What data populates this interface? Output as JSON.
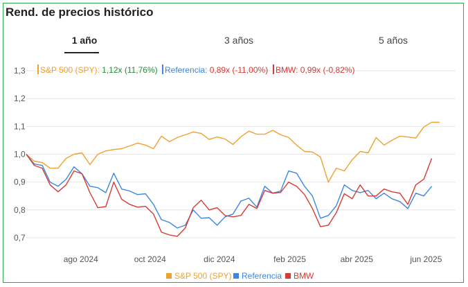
{
  "title": "Rend. de precios histórico",
  "tabs": [
    {
      "label": "1 año",
      "active": true
    },
    {
      "label": "3 años",
      "active": false
    },
    {
      "label": "5 años",
      "active": false
    }
  ],
  "colors": {
    "sp500": "#f0a030",
    "referencia": "#3a86e0",
    "bmw": "#d63a32",
    "green": "#2b8a3e",
    "red": "#d63a32",
    "grid": "#e6e6e6",
    "axis_text": "#555555"
  },
  "header_items": [
    {
      "name": "S&P 500 (SPY)",
      "value": "1,12x",
      "change": "(11,76%)",
      "positive": true
    },
    {
      "name": "Referencia",
      "value": "0,89x",
      "change": "(-11,00%)",
      "positive": false
    },
    {
      "name": "BMW",
      "value": "0,99x",
      "change": "(-0,82%)",
      "positive": false
    }
  ],
  "chart_data": {
    "type": "line",
    "y_ticks": [
      "0,7",
      "0,8",
      "0,9",
      "1,0",
      "1,1",
      "1,2",
      "1,3"
    ],
    "y_tick_values": [
      0.7,
      0.8,
      0.9,
      1.0,
      1.1,
      1.2,
      1.3
    ],
    "ylim": [
      0.67,
      1.33
    ],
    "x_tick_labels": [
      "ago 2024",
      "oct 2024",
      "dic 2024",
      "feb 2025",
      "abr 2025",
      "jun 2025"
    ],
    "x_tick_dates": [
      "2024-08-01",
      "2024-10-01",
      "2024-12-01",
      "2025-02-01",
      "2025-04-01",
      "2025-06-01"
    ],
    "x_range": [
      "2024-06-14",
      "2025-06-27"
    ],
    "legend": [
      "S&P 500 (SPY)",
      "Referencia",
      "BMW"
    ],
    "legend_position": "bottom",
    "series": [
      {
        "name": "S&P 500 (SPY)",
        "points": [
          [
            "2024-06-14",
            1.0
          ],
          [
            "2024-06-21",
            0.975
          ],
          [
            "2024-06-28",
            0.97
          ],
          [
            "2024-07-05",
            0.95
          ],
          [
            "2024-07-12",
            0.95
          ],
          [
            "2024-07-19",
            0.985
          ],
          [
            "2024-07-26",
            1.0
          ],
          [
            "2024-08-02",
            1.005
          ],
          [
            "2024-08-09",
            0.963
          ],
          [
            "2024-08-16",
            1.0
          ],
          [
            "2024-08-23",
            1.012
          ],
          [
            "2024-08-30",
            1.017
          ],
          [
            "2024-09-06",
            1.02
          ],
          [
            "2024-09-13",
            1.03
          ],
          [
            "2024-09-20",
            1.04
          ],
          [
            "2024-09-27",
            1.033
          ],
          [
            "2024-10-04",
            1.02
          ],
          [
            "2024-10-11",
            1.065
          ],
          [
            "2024-10-18",
            1.045
          ],
          [
            "2024-10-25",
            1.06
          ],
          [
            "2024-11-01",
            1.07
          ],
          [
            "2024-11-08",
            1.08
          ],
          [
            "2024-11-15",
            1.075
          ],
          [
            "2024-11-22",
            1.053
          ],
          [
            "2024-11-29",
            1.062
          ],
          [
            "2024-12-06",
            1.055
          ],
          [
            "2024-12-13",
            1.035
          ],
          [
            "2024-12-20",
            1.063
          ],
          [
            "2024-12-27",
            1.083
          ],
          [
            "2025-01-03",
            1.072
          ],
          [
            "2025-01-10",
            1.072
          ],
          [
            "2025-01-17",
            1.086
          ],
          [
            "2025-01-24",
            1.07
          ],
          [
            "2025-01-31",
            1.06
          ],
          [
            "2025-02-07",
            1.033
          ],
          [
            "2025-02-14",
            1.01
          ],
          [
            "2025-02-21",
            1.008
          ],
          [
            "2025-02-28",
            0.99
          ],
          [
            "2025-03-07",
            0.9
          ],
          [
            "2025-03-14",
            0.95
          ],
          [
            "2025-03-21",
            0.94
          ],
          [
            "2025-03-28",
            0.98
          ],
          [
            "2025-04-04",
            1.01
          ],
          [
            "2025-04-11",
            1.005
          ],
          [
            "2025-04-18",
            1.06
          ],
          [
            "2025-04-25",
            1.033
          ],
          [
            "2025-05-02",
            1.05
          ],
          [
            "2025-05-09",
            1.065
          ],
          [
            "2025-05-16",
            1.062
          ],
          [
            "2025-05-23",
            1.058
          ],
          [
            "2025-05-30",
            1.098
          ],
          [
            "2025-06-06",
            1.115
          ],
          [
            "2025-06-13",
            1.115
          ]
        ]
      },
      {
        "name": "Referencia",
        "points": [
          [
            "2024-06-14",
            1.0
          ],
          [
            "2024-06-21",
            0.965
          ],
          [
            "2024-06-28",
            0.96
          ],
          [
            "2024-07-05",
            0.9
          ],
          [
            "2024-07-12",
            0.885
          ],
          [
            "2024-07-19",
            0.91
          ],
          [
            "2024-07-26",
            0.955
          ],
          [
            "2024-08-02",
            0.93
          ],
          [
            "2024-08-09",
            0.885
          ],
          [
            "2024-08-16",
            0.88
          ],
          [
            "2024-08-23",
            0.862
          ],
          [
            "2024-08-30",
            0.932
          ],
          [
            "2024-09-06",
            0.875
          ],
          [
            "2024-09-13",
            0.868
          ],
          [
            "2024-09-20",
            0.855
          ],
          [
            "2024-09-27",
            0.858
          ],
          [
            "2024-10-04",
            0.82
          ],
          [
            "2024-10-11",
            0.765
          ],
          [
            "2024-10-18",
            0.755
          ],
          [
            "2024-10-25",
            0.735
          ],
          [
            "2024-11-01",
            0.745
          ],
          [
            "2024-11-08",
            0.8
          ],
          [
            "2024-11-15",
            0.77
          ],
          [
            "2024-11-22",
            0.772
          ],
          [
            "2024-11-29",
            0.745
          ],
          [
            "2024-12-06",
            0.775
          ],
          [
            "2024-12-13",
            0.785
          ],
          [
            "2024-12-20",
            0.832
          ],
          [
            "2024-12-27",
            0.842
          ],
          [
            "2025-01-03",
            0.81
          ],
          [
            "2025-01-10",
            0.885
          ],
          [
            "2025-01-17",
            0.86
          ],
          [
            "2025-01-24",
            0.868
          ],
          [
            "2025-01-31",
            0.94
          ],
          [
            "2025-02-07",
            0.932
          ],
          [
            "2025-02-14",
            0.885
          ],
          [
            "2025-02-21",
            0.85
          ],
          [
            "2025-02-28",
            0.77
          ],
          [
            "2025-03-07",
            0.78
          ],
          [
            "2025-03-14",
            0.815
          ],
          [
            "2025-03-21",
            0.89
          ],
          [
            "2025-03-28",
            0.87
          ],
          [
            "2025-04-04",
            0.862
          ],
          [
            "2025-04-11",
            0.87
          ],
          [
            "2025-04-18",
            0.84
          ],
          [
            "2025-04-25",
            0.86
          ],
          [
            "2025-05-02",
            0.84
          ],
          [
            "2025-05-09",
            0.83
          ],
          [
            "2025-05-16",
            0.805
          ],
          [
            "2025-05-23",
            0.86
          ],
          [
            "2025-05-30",
            0.85
          ],
          [
            "2025-06-06",
            0.885
          ]
        ]
      },
      {
        "name": "BMW",
        "points": [
          [
            "2024-06-14",
            1.0
          ],
          [
            "2024-06-21",
            0.96
          ],
          [
            "2024-06-28",
            0.95
          ],
          [
            "2024-07-05",
            0.89
          ],
          [
            "2024-07-12",
            0.865
          ],
          [
            "2024-07-19",
            0.89
          ],
          [
            "2024-07-26",
            0.94
          ],
          [
            "2024-08-02",
            0.93
          ],
          [
            "2024-08-09",
            0.862
          ],
          [
            "2024-08-16",
            0.808
          ],
          [
            "2024-08-23",
            0.812
          ],
          [
            "2024-08-30",
            0.9
          ],
          [
            "2024-09-06",
            0.838
          ],
          [
            "2024-09-13",
            0.82
          ],
          [
            "2024-09-20",
            0.81
          ],
          [
            "2024-09-27",
            0.813
          ],
          [
            "2024-10-04",
            0.785
          ],
          [
            "2024-10-11",
            0.72
          ],
          [
            "2024-10-18",
            0.71
          ],
          [
            "2024-10-25",
            0.705
          ],
          [
            "2024-11-01",
            0.735
          ],
          [
            "2024-11-08",
            0.808
          ],
          [
            "2024-11-15",
            0.835
          ],
          [
            "2024-11-22",
            0.8
          ],
          [
            "2024-11-29",
            0.808
          ],
          [
            "2024-12-06",
            0.78
          ],
          [
            "2024-12-13",
            0.775
          ],
          [
            "2024-12-20",
            0.78
          ],
          [
            "2024-12-27",
            0.82
          ],
          [
            "2025-01-03",
            0.805
          ],
          [
            "2025-01-10",
            0.87
          ],
          [
            "2025-01-17",
            0.86
          ],
          [
            "2025-01-24",
            0.863
          ],
          [
            "2025-01-31",
            0.9
          ],
          [
            "2025-02-07",
            0.885
          ],
          [
            "2025-02-14",
            0.855
          ],
          [
            "2025-02-21",
            0.805
          ],
          [
            "2025-02-28",
            0.74
          ],
          [
            "2025-03-07",
            0.745
          ],
          [
            "2025-03-14",
            0.79
          ],
          [
            "2025-03-21",
            0.858
          ],
          [
            "2025-03-28",
            0.84
          ],
          [
            "2025-04-04",
            0.89
          ],
          [
            "2025-04-11",
            0.85
          ],
          [
            "2025-04-18",
            0.85
          ],
          [
            "2025-04-25",
            0.875
          ],
          [
            "2025-05-02",
            0.865
          ],
          [
            "2025-05-09",
            0.86
          ],
          [
            "2025-05-16",
            0.82
          ],
          [
            "2025-05-23",
            0.89
          ],
          [
            "2025-05-30",
            0.91
          ],
          [
            "2025-06-06",
            0.985
          ]
        ]
      }
    ]
  }
}
